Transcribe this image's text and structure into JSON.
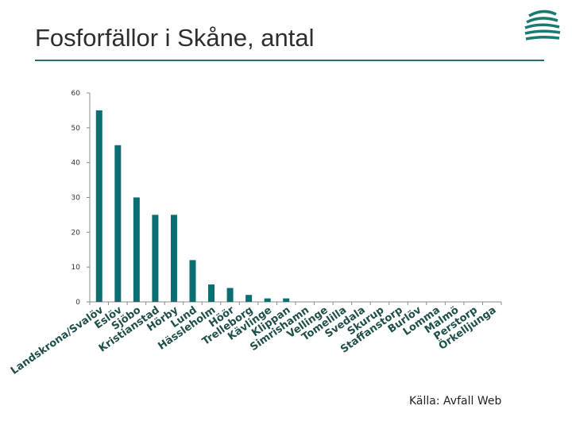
{
  "slide": {
    "title": "Fosforfällor i Skåne, antal",
    "source": "Källa: Avfall Web"
  },
  "colors": {
    "bar": "#0b6e73",
    "rule": "#2e6f66",
    "logo": "#1a7a70"
  },
  "logo_icon": "waves-logo-icon",
  "chart_data": {
    "type": "bar",
    "title": "",
    "xlabel": "",
    "ylabel": "",
    "ylim": [
      0,
      60
    ],
    "yticks": [
      0,
      10,
      20,
      30,
      40,
      50,
      60
    ],
    "grid": false,
    "categories": [
      "Landskrona/Svalöv",
      "Eslöv",
      "Sjöbo",
      "Kristianstad",
      "Hörby",
      "Lund",
      "Hässleholm",
      "Höör",
      "Trelleborg",
      "Kävlinge",
      "Klippan",
      "Simrishamn",
      "Vellinge",
      "Tomelilla",
      "Svedala",
      "Skurup",
      "Staffanstorp",
      "Burlöv",
      "Lomma",
      "Malmö",
      "Perstorp",
      "Örkelljunga"
    ],
    "values": [
      55,
      45,
      30,
      25,
      25,
      12,
      5,
      4,
      2,
      1,
      1,
      0,
      0,
      0,
      0,
      0,
      0,
      0,
      0,
      0,
      0,
      0
    ]
  }
}
